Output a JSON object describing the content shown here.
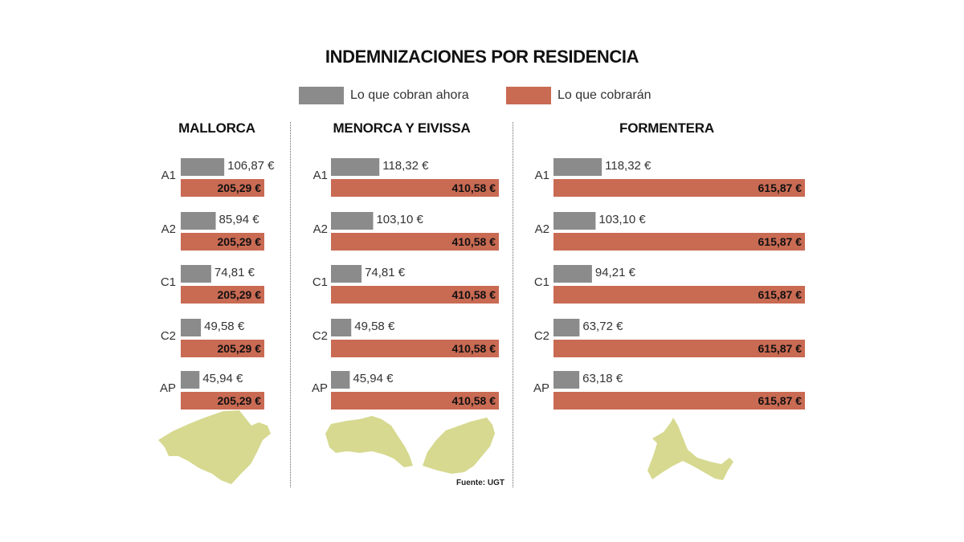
{
  "title": "INDEMNIZACIONES POR RESIDENCIA",
  "legend": {
    "current": "Lo que cobran ahora",
    "future": "Lo que cobrarán"
  },
  "colors": {
    "current": "#8c8b8c",
    "future": "#c96a53",
    "island": "#d6d98f"
  },
  "source": "Fuente: UGT",
  "chart_data": [
    {
      "type": "bar",
      "title": "MALLORCA",
      "categories": [
        "A1",
        "A2",
        "C1",
        "C2",
        "AP"
      ],
      "series": [
        {
          "name": "Lo que cobran ahora",
          "values": [
            106.87,
            85.94,
            74.81,
            49.58,
            45.94
          ],
          "labels": [
            "106,87 €",
            "85,94 €",
            "74,81 €",
            "49,58 €",
            "45,94 €"
          ]
        },
        {
          "name": "Lo que cobrarán",
          "values": [
            205.29,
            205.29,
            205.29,
            205.29,
            205.29
          ],
          "labels": [
            "205,29 €",
            "205,29 €",
            "205,29 €",
            "205,29 €",
            "205,29 €"
          ]
        }
      ]
    },
    {
      "type": "bar",
      "title": "MENORCA Y EIVISSA",
      "categories": [
        "A1",
        "A2",
        "C1",
        "C2",
        "AP"
      ],
      "series": [
        {
          "name": "Lo que cobran ahora",
          "values": [
            118.32,
            103.1,
            74.81,
            49.58,
            45.94
          ],
          "labels": [
            "118,32 €",
            "103,10 €",
            "74,81 €",
            "49,58 €",
            "45,94 €"
          ]
        },
        {
          "name": "Lo que cobrarán",
          "values": [
            410.58,
            410.58,
            410.58,
            410.58,
            410.58
          ],
          "labels": [
            "410,58 €",
            "410,58 €",
            "410,58 €",
            "410,58 €",
            "410,58 €"
          ]
        }
      ]
    },
    {
      "type": "bar",
      "title": "FORMENTERA",
      "categories": [
        "A1",
        "A2",
        "C1",
        "C2",
        "AP"
      ],
      "series": [
        {
          "name": "Lo que cobran ahora",
          "values": [
            118.32,
            103.1,
            94.21,
            63.72,
            63.18
          ],
          "labels": [
            "118,32 €",
            "103,10 €",
            "94,21 €",
            "63,72 €",
            "63,18 €"
          ]
        },
        {
          "name": "Lo que cobrarán",
          "values": [
            615.87,
            615.87,
            615.87,
            615.87,
            615.87
          ],
          "labels": [
            "615,87 €",
            "615,87 €",
            "615,87 €",
            "615,87 €",
            "615,87 €"
          ]
        }
      ]
    }
  ]
}
